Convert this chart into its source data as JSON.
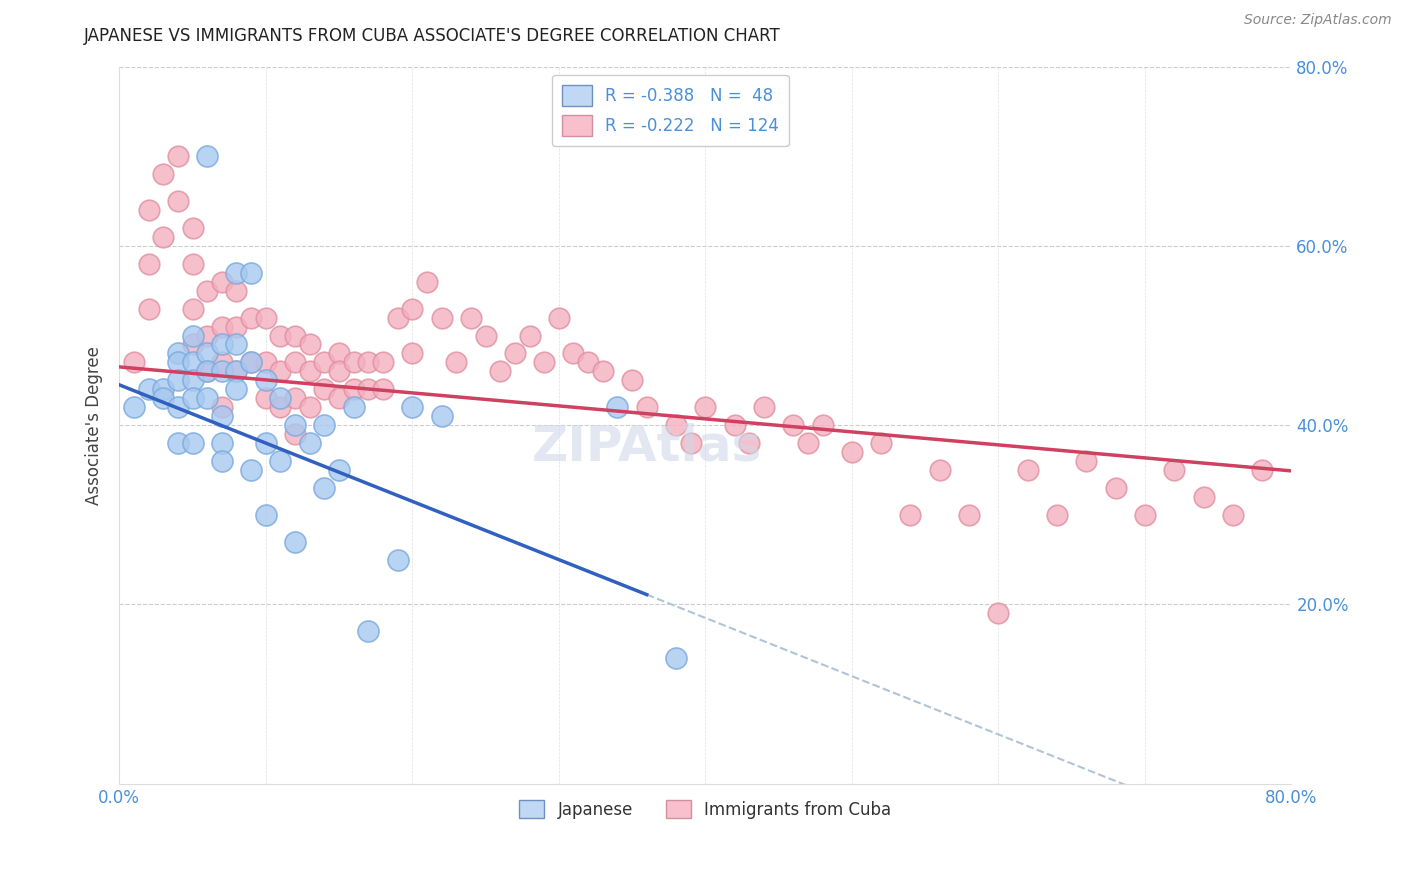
{
  "title": "JAPANESE VS IMMIGRANTS FROM CUBA ASSOCIATE'S DEGREE CORRELATION CHART",
  "source": "Source: ZipAtlas.com",
  "ylabel": "Associate's Degree",
  "xlim": [
    0.0,
    0.8
  ],
  "ylim": [
    0.0,
    0.8
  ],
  "ytick_positions": [
    0.2,
    0.4,
    0.6,
    0.8
  ],
  "ytick_labels": [
    "20.0%",
    "40.0%",
    "60.0%",
    "80.0%"
  ],
  "xtick_positions": [
    0.0,
    0.1,
    0.2,
    0.3,
    0.4,
    0.5,
    0.6,
    0.7,
    0.8
  ],
  "xtick_labels": [
    "0.0%",
    "",
    "",
    "",
    "",
    "",
    "",
    "",
    "80.0%"
  ],
  "blue_scatter_color": "#a8c8f0",
  "blue_scatter_edge": "#7aaade",
  "pink_scatter_color": "#f4b0c0",
  "pink_scatter_edge": "#e090a0",
  "blue_line_color": "#3060c0",
  "pink_line_color": "#d04060",
  "dashed_line_color": "#b0c4d8",
  "tick_color": "#4a90d9",
  "grid_color": "#cccccc",
  "title_color": "#222222",
  "source_color": "#888888",
  "watermark_color": "#d0d8e8",
  "japanese_x": [
    0.01,
    0.02,
    0.03,
    0.03,
    0.04,
    0.04,
    0.04,
    0.04,
    0.04,
    0.05,
    0.05,
    0.05,
    0.05,
    0.05,
    0.06,
    0.06,
    0.06,
    0.06,
    0.07,
    0.07,
    0.07,
    0.07,
    0.07,
    0.08,
    0.08,
    0.08,
    0.08,
    0.09,
    0.09,
    0.09,
    0.1,
    0.1,
    0.1,
    0.11,
    0.11,
    0.12,
    0.12,
    0.13,
    0.14,
    0.14,
    0.15,
    0.16,
    0.17,
    0.19,
    0.2,
    0.22,
    0.34,
    0.38
  ],
  "japanese_y": [
    0.42,
    0.44,
    0.44,
    0.43,
    0.48,
    0.47,
    0.45,
    0.42,
    0.38,
    0.5,
    0.47,
    0.45,
    0.43,
    0.38,
    0.7,
    0.48,
    0.46,
    0.43,
    0.49,
    0.46,
    0.41,
    0.38,
    0.36,
    0.57,
    0.49,
    0.46,
    0.44,
    0.57,
    0.47,
    0.35,
    0.45,
    0.38,
    0.3,
    0.43,
    0.36,
    0.4,
    0.27,
    0.38,
    0.4,
    0.33,
    0.35,
    0.42,
    0.17,
    0.25,
    0.42,
    0.41,
    0.42,
    0.14
  ],
  "cuba_x": [
    0.01,
    0.02,
    0.02,
    0.02,
    0.03,
    0.03,
    0.04,
    0.04,
    0.05,
    0.05,
    0.05,
    0.05,
    0.06,
    0.06,
    0.06,
    0.07,
    0.07,
    0.07,
    0.07,
    0.08,
    0.08,
    0.08,
    0.09,
    0.09,
    0.1,
    0.1,
    0.1,
    0.11,
    0.11,
    0.11,
    0.12,
    0.12,
    0.12,
    0.12,
    0.13,
    0.13,
    0.13,
    0.14,
    0.14,
    0.15,
    0.15,
    0.15,
    0.16,
    0.16,
    0.17,
    0.17,
    0.18,
    0.18,
    0.19,
    0.2,
    0.2,
    0.21,
    0.22,
    0.23,
    0.24,
    0.25,
    0.26,
    0.27,
    0.28,
    0.29,
    0.3,
    0.31,
    0.32,
    0.33,
    0.35,
    0.36,
    0.38,
    0.39,
    0.4,
    0.42,
    0.43,
    0.44,
    0.46,
    0.47,
    0.48,
    0.5,
    0.52,
    0.54,
    0.56,
    0.58,
    0.6,
    0.62,
    0.64,
    0.66,
    0.68,
    0.7,
    0.72,
    0.74,
    0.76,
    0.78
  ],
  "cuba_y": [
    0.47,
    0.64,
    0.58,
    0.53,
    0.68,
    0.61,
    0.7,
    0.65,
    0.62,
    0.58,
    0.53,
    0.49,
    0.55,
    0.5,
    0.46,
    0.56,
    0.51,
    0.47,
    0.42,
    0.55,
    0.51,
    0.46,
    0.52,
    0.47,
    0.52,
    0.47,
    0.43,
    0.5,
    0.46,
    0.42,
    0.5,
    0.47,
    0.43,
    0.39,
    0.49,
    0.46,
    0.42,
    0.47,
    0.44,
    0.48,
    0.46,
    0.43,
    0.47,
    0.44,
    0.47,
    0.44,
    0.47,
    0.44,
    0.52,
    0.53,
    0.48,
    0.56,
    0.52,
    0.47,
    0.52,
    0.5,
    0.46,
    0.48,
    0.5,
    0.47,
    0.52,
    0.48,
    0.47,
    0.46,
    0.45,
    0.42,
    0.4,
    0.38,
    0.42,
    0.4,
    0.38,
    0.42,
    0.4,
    0.38,
    0.4,
    0.37,
    0.38,
    0.3,
    0.35,
    0.3,
    0.19,
    0.35,
    0.3,
    0.36,
    0.33,
    0.3,
    0.35,
    0.32,
    0.3,
    0.35
  ],
  "blue_line_x0": 0.0,
  "blue_line_x_solid_end": 0.36,
  "blue_line_x_dashed_end": 0.8,
  "blue_line_y0": 0.445,
  "blue_line_slope": -0.65,
  "pink_line_x0": 0.0,
  "pink_line_x1": 0.8,
  "pink_line_y0": 0.465,
  "pink_line_slope": -0.145
}
